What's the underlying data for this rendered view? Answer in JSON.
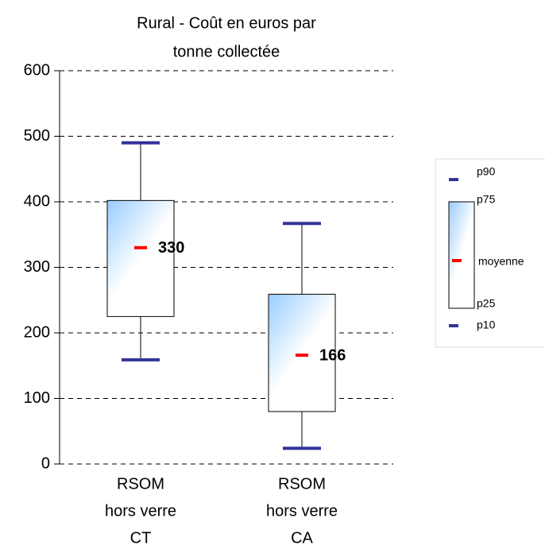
{
  "chart_data": {
    "type": "box",
    "title": [
      "Rural - Coût en euros par",
      "tonne collectée"
    ],
    "categories": [
      [
        "RSOM",
        "hors verre",
        "CT"
      ],
      [
        "RSOM",
        "hors verre",
        "CA"
      ]
    ],
    "stats": [
      {
        "name": "p90",
        "color": "#333399",
        "values": [
          490,
          367
        ]
      },
      {
        "name": "p75",
        "values": [
          402,
          259
        ]
      },
      {
        "name": "moyenne",
        "color": "#ff0000",
        "values": [
          330,
          166
        ]
      },
      {
        "name": "p25",
        "values": [
          225,
          80
        ]
      },
      {
        "name": "p10",
        "color": "#333399",
        "values": [
          159,
          24
        ]
      }
    ],
    "ylim": [
      0,
      600
    ],
    "yticks": [
      0,
      100,
      200,
      300,
      400,
      500,
      600
    ],
    "grid": true
  }
}
